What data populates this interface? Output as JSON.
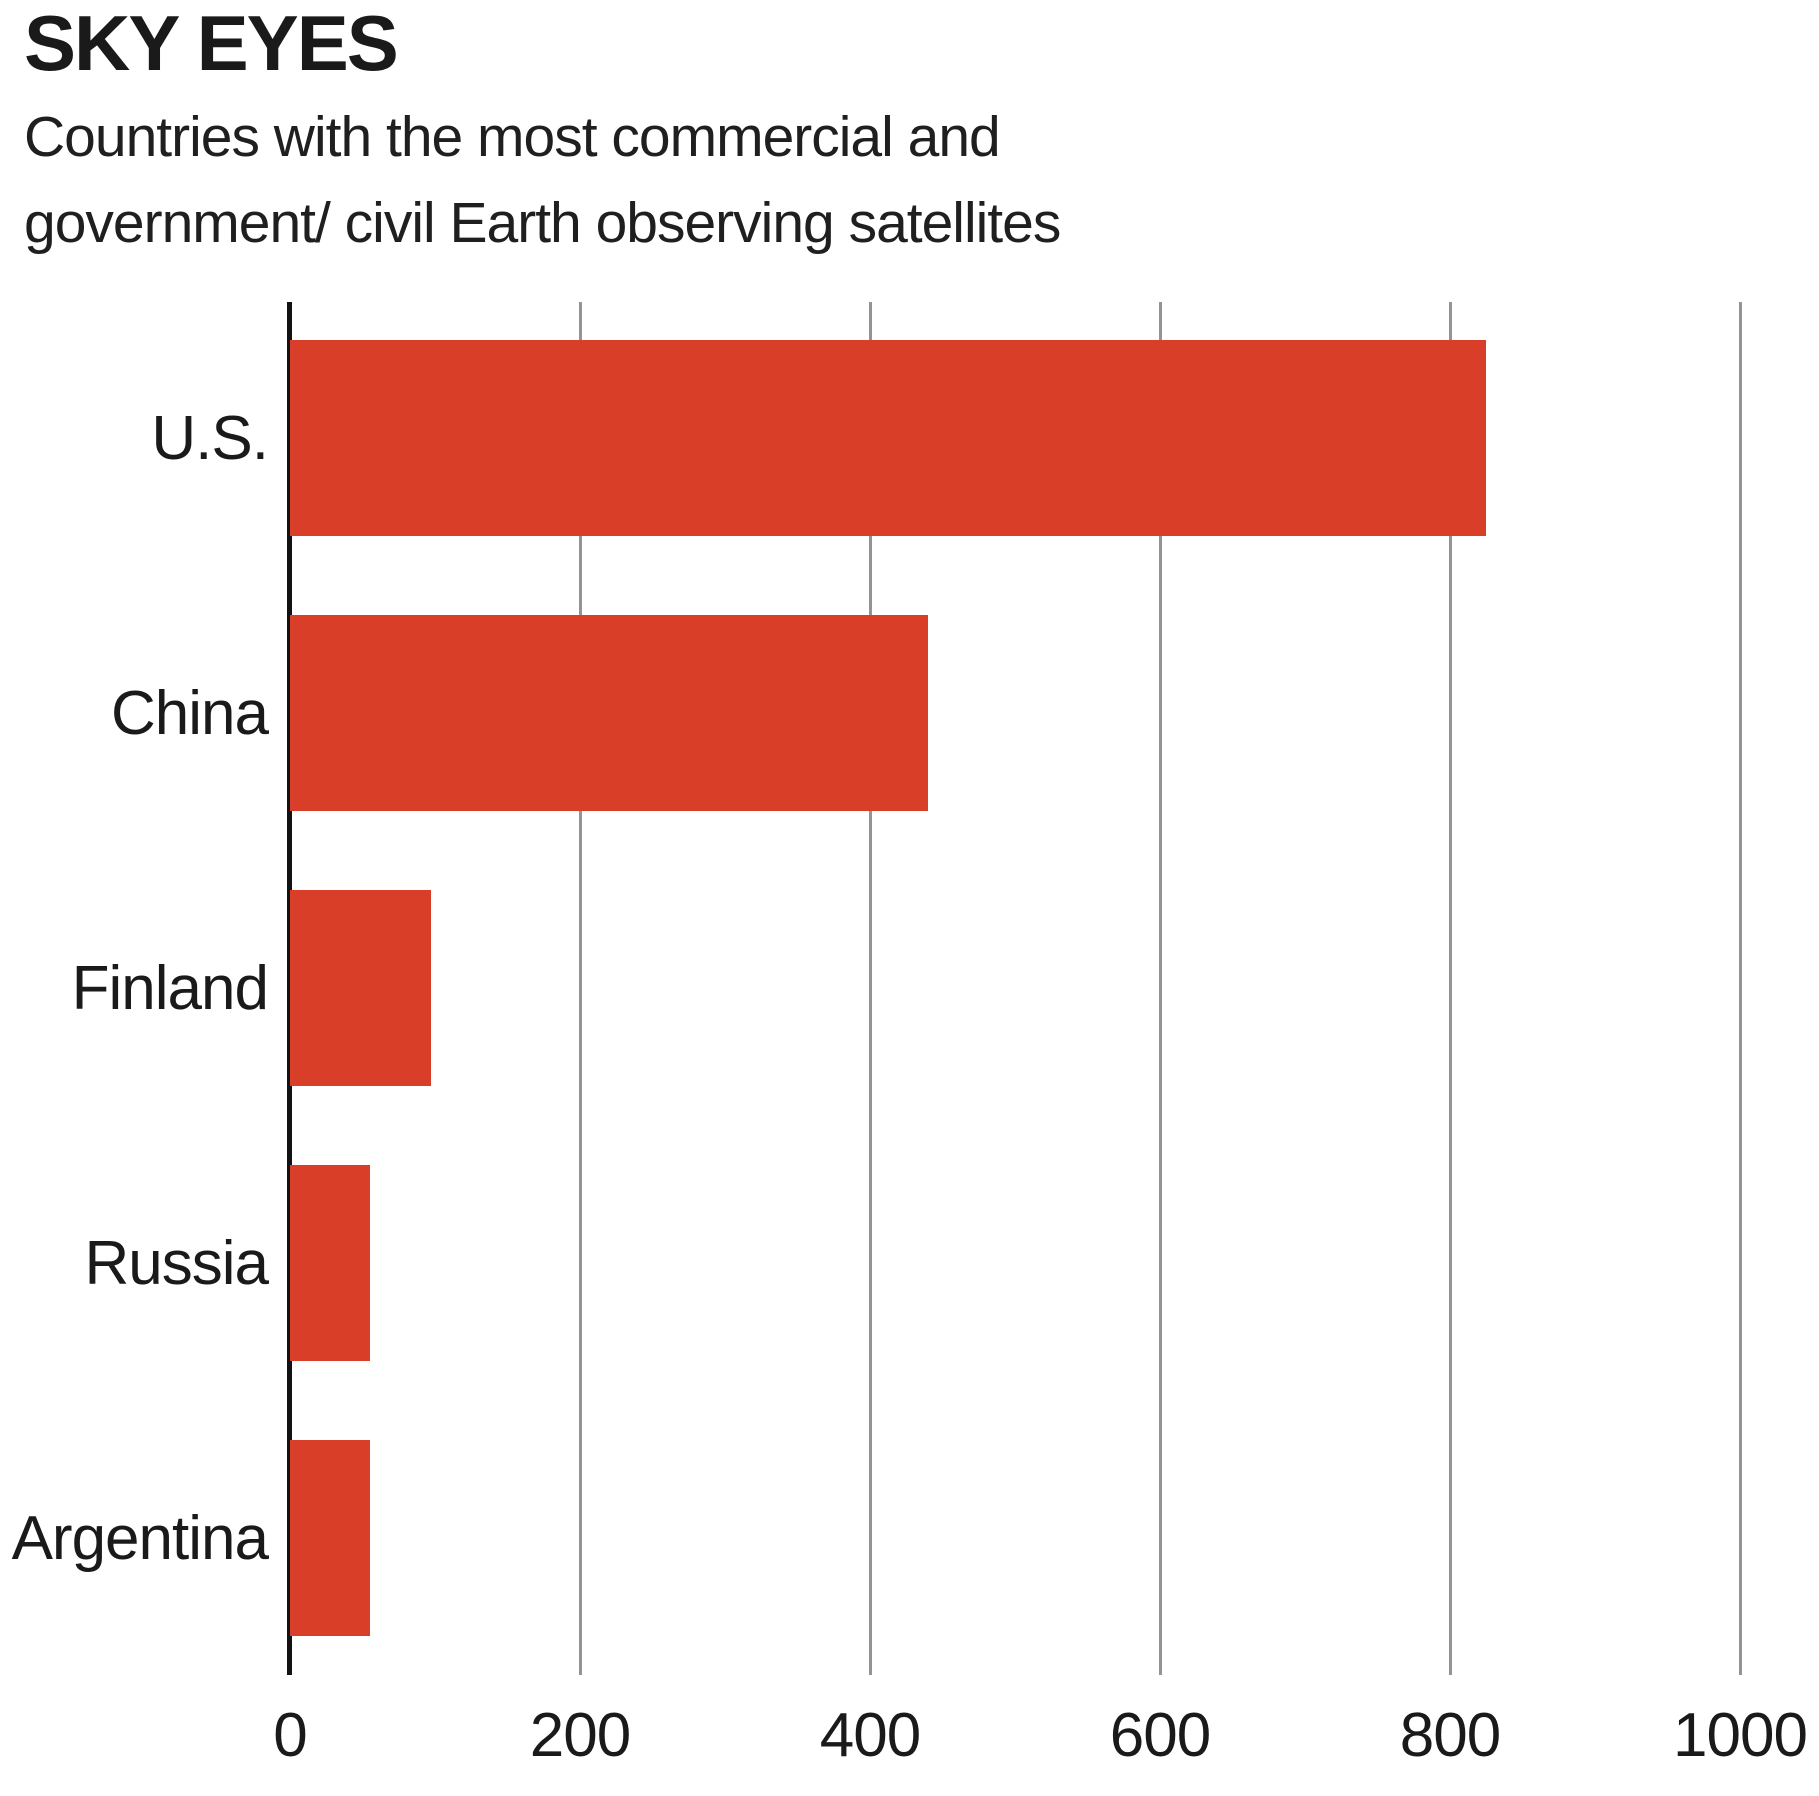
{
  "header": {
    "title": "SKY EYES",
    "subtitle_line1": "Countries with the most commercial and",
    "subtitle_line2": "government/ civil Earth observing satellites"
  },
  "chart_data": {
    "type": "bar",
    "orientation": "horizontal",
    "title": "SKY EYES",
    "subtitle": "Countries with the most commercial and government/ civil Earth observing satellites",
    "categories": [
      "U.S.",
      "China",
      "Finland",
      "Russia",
      "Argentina"
    ],
    "values": [
      825,
      440,
      97,
      55,
      55
    ],
    "xlabel": "",
    "ylabel": "",
    "xlim": [
      0,
      1000
    ],
    "xticks": [
      0,
      200,
      400,
      600,
      800,
      1000
    ],
    "grid": true,
    "legend": "none",
    "colors": {
      "bar": "#D93F28",
      "gridline": "#949494",
      "axis": "#121212",
      "text": "#1a1a1a"
    }
  }
}
